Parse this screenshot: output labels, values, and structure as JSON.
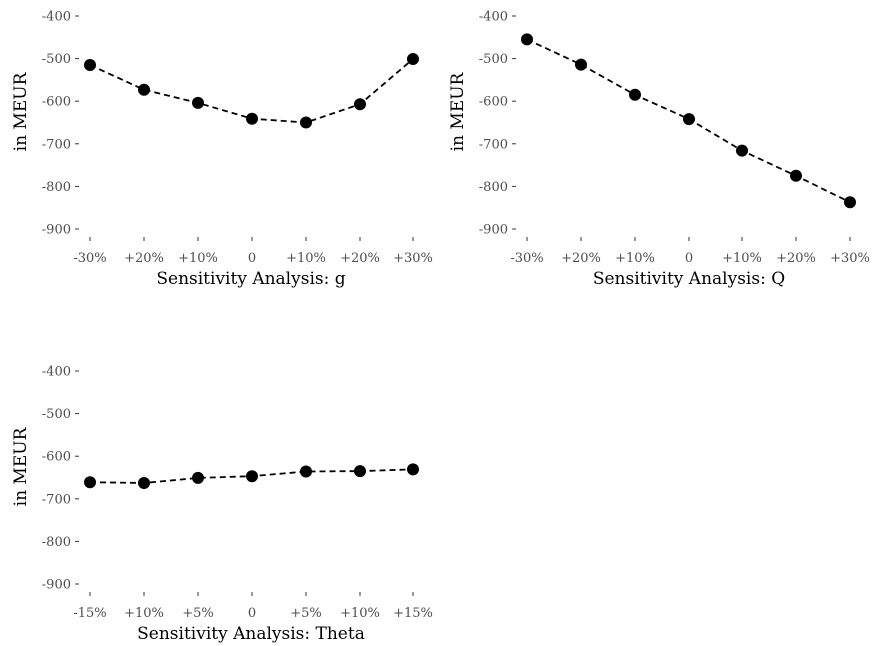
{
  "chart_data": [
    {
      "type": "line",
      "xlabel": "Sensitivity Analysis: g",
      "ylabel": "in MEUR",
      "categories": [
        "-30%",
        "+20%",
        "+10%",
        "0",
        "+10%",
        "+20%",
        "+30%"
      ],
      "values": [
        -515,
        -573,
        -604,
        -641,
        -650,
        -607,
        -501
      ],
      "yticks": [
        "-400",
        "-500",
        "-600",
        "-700",
        "-800",
        "-900"
      ],
      "ylim": [
        -900,
        -400
      ],
      "grid": false,
      "line_style": "dashed"
    },
    {
      "type": "line",
      "xlabel": "Sensitivity Analysis: Q",
      "ylabel": "in MEUR",
      "categories": [
        "-30%",
        "+20%",
        "+10%",
        "0",
        "+10%",
        "+20%",
        "+30%"
      ],
      "values": [
        -455,
        -514,
        -585,
        -642,
        -716,
        -775,
        -837
      ],
      "yticks": [
        "-400",
        "-500",
        "-600",
        "-700",
        "-800",
        "-900"
      ],
      "ylim": [
        -900,
        -400
      ],
      "grid": false,
      "line_style": "dashed"
    },
    {
      "type": "line",
      "xlabel": "Sensitivity Analysis: Theta",
      "ylabel": "in MEUR",
      "categories": [
        "-15%",
        "+10%",
        "+5%",
        "0",
        "+5%",
        "+10%",
        "+15%"
      ],
      "values": [
        -661,
        -663,
        -651,
        -647,
        -636,
        -635,
        -631
      ],
      "yticks": [
        "-400",
        "-500",
        "-600",
        "-700",
        "-800",
        "-900"
      ],
      "ylim": [
        -900,
        -400
      ],
      "grid": false,
      "line_style": "dashed"
    }
  ]
}
